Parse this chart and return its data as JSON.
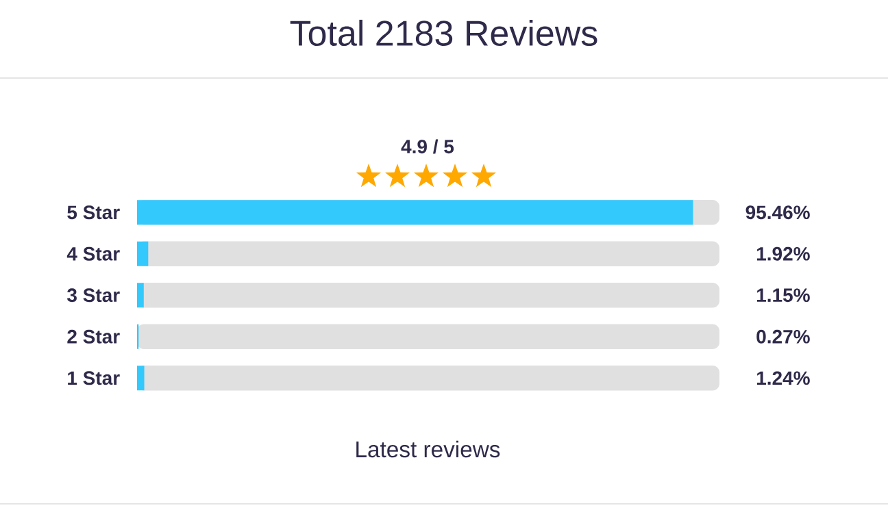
{
  "chart_data": {
    "type": "bar",
    "orientation": "horizontal",
    "title": "Total 2183 Reviews",
    "subtitle": "4.9 / 5",
    "categories": [
      "5 Star",
      "4 Star",
      "3 Star",
      "2 Star",
      "1 Star"
    ],
    "values": [
      95.46,
      1.92,
      1.15,
      0.27,
      1.24
    ],
    "value_labels": [
      "95.46%",
      "1.92%",
      "1.15%",
      "0.27%",
      "1.24%"
    ],
    "color": "#33c9fc",
    "xlim": [
      0,
      100
    ],
    "tick_labels": "y",
    "annotations": [
      "Latest reviews"
    ]
  }
}
